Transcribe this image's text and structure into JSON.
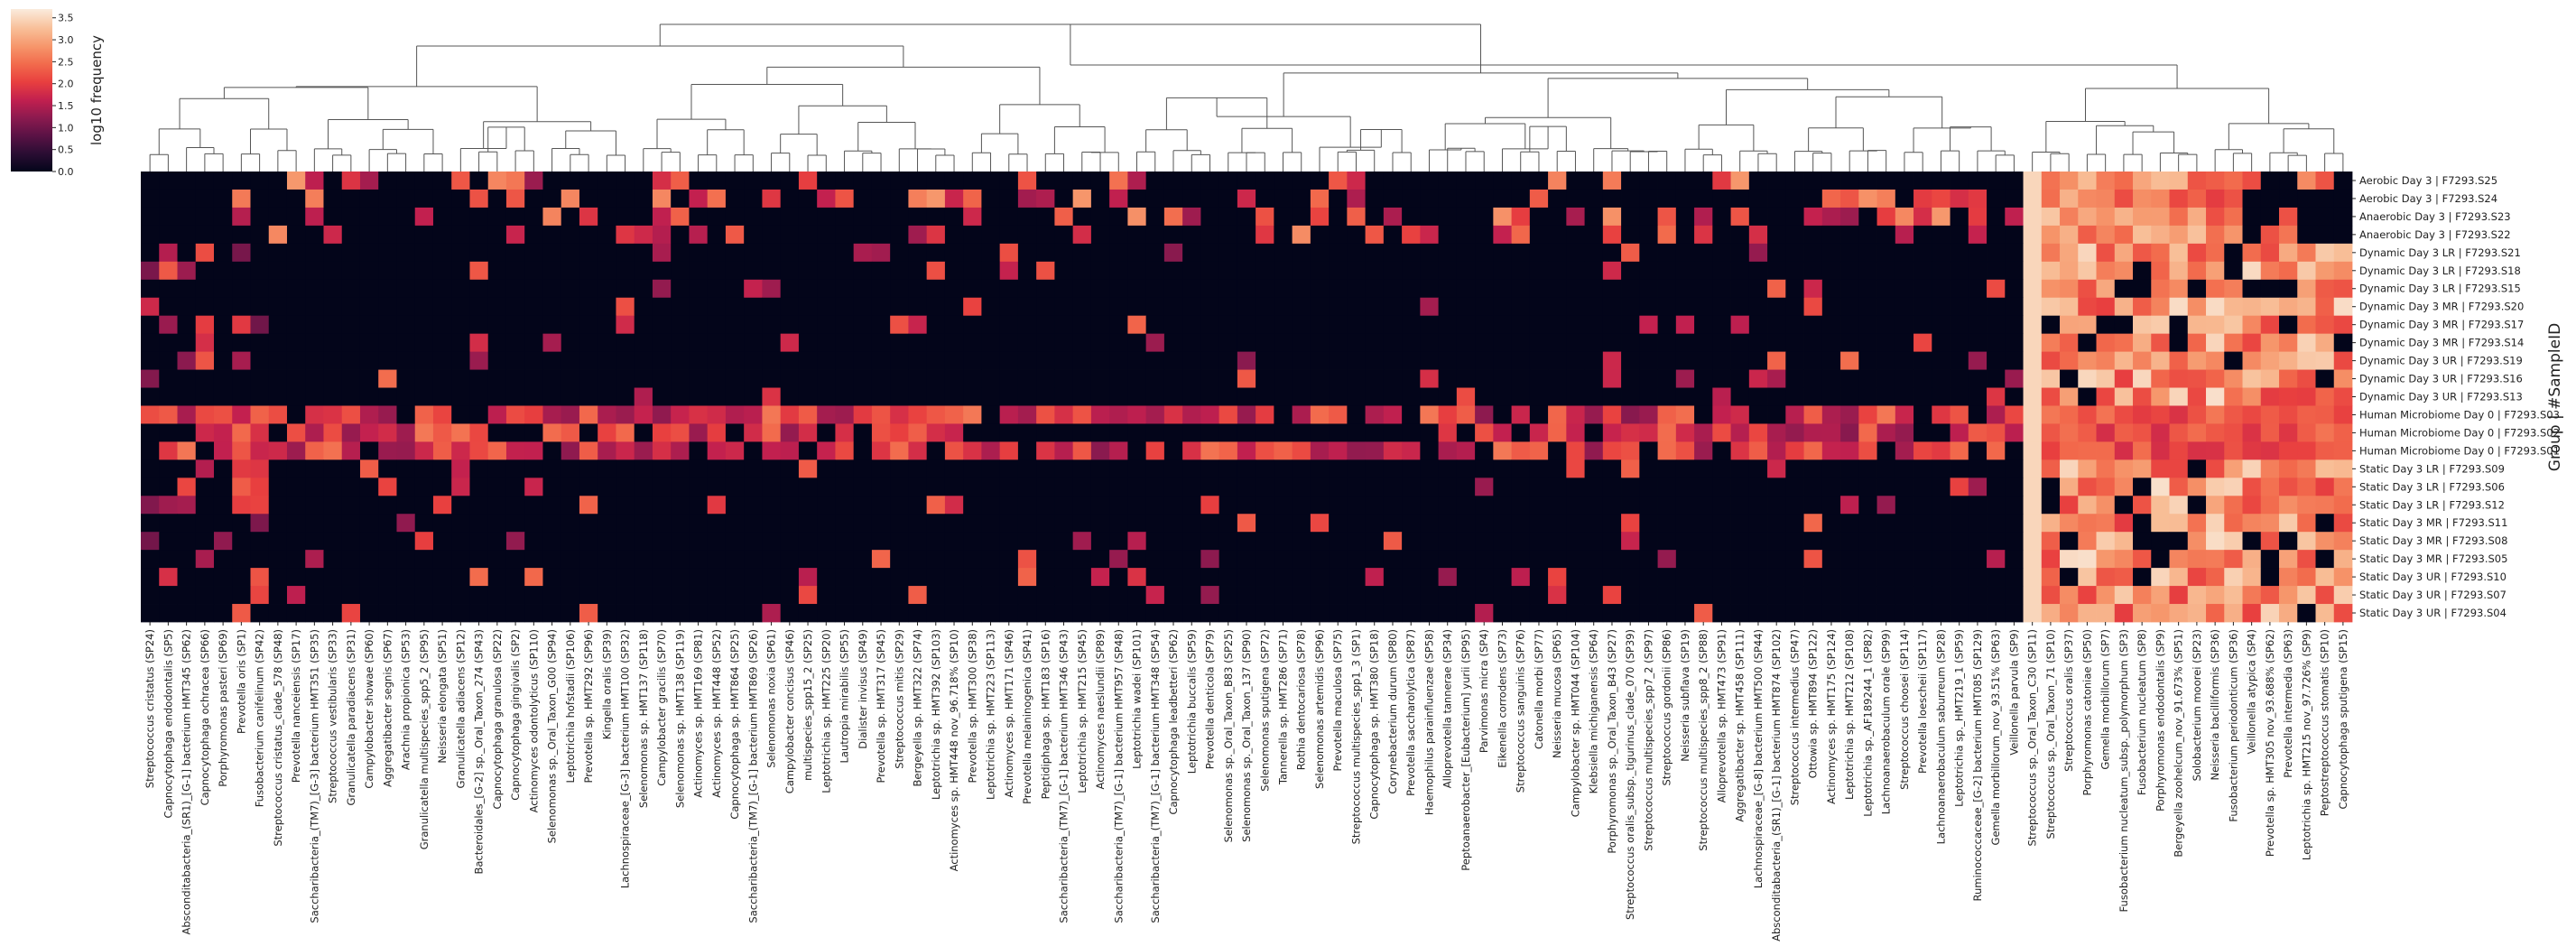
{
  "chart_data": {
    "type": "heatmap",
    "colorbar": {
      "label": "log10 frequency",
      "ticks": [
        "0.0",
        "0.5",
        "1.0",
        "1.5",
        "2.0",
        "2.5",
        "3.0",
        "3.5"
      ],
      "range": [
        0,
        3.7
      ],
      "colormap": [
        "#03051a",
        "#2a0d33",
        "#5a1245",
        "#8c1a4f",
        "#c2204f",
        "#e83f3f",
        "#f26a4c",
        "#f6966b",
        "#f8bf98",
        "#faebdd"
      ]
    },
    "ylabel": "Group | #SampleID",
    "rows": [
      "Aerobic Day 3 | F7293.S25",
      "Aerobic Day 3 | F7293.S24",
      "Anaerobic Day 3 | F7293.S23",
      "Anaerobic Day 3 | F7293.S22",
      "Dynamic Day 3 LR | F7293.S21",
      "Dynamic Day 3 LR | F7293.S18",
      "Dynamic Day 3 LR | F7293.S15",
      "Dynamic Day 3 MR | F7293.S20",
      "Dynamic Day 3 MR | F7293.S17",
      "Dynamic Day 3 MR | F7293.S14",
      "Dynamic Day 3 UR | F7293.S19",
      "Dynamic Day 3 UR | F7293.S16",
      "Dynamic Day 3 UR | F7293.S13",
      "Human Microbiome Day 0 | F7293.S03",
      "Human Microbiome Day 0 | F7293.S02",
      "Human Microbiome Day 0 | F7293.S01",
      "Static Day 3 LR | F7293.S09",
      "Static Day 3 LR | F7293.S06",
      "Static Day 3 LR | F7293.S12",
      "Static Day 3 MR | F7293.S11",
      "Static Day 3 MR | F7293.S08",
      "Static Day 3 MR | F7293.S05",
      "Static Day 3 UR | F7293.S10",
      "Static Day 3 UR | F7293.S07",
      "Static Day 3 UR | F7293.S04"
    ],
    "columns": [
      "Streptococcus cristatus (SP24)",
      "Capnocytophaga endodontalis (SP5)",
      "Absconditabacteria_(SR1)_[G-1] bacterium HMT345 (SP62)",
      "Capnocytophaga ochracea (SP66)",
      "Porphyromonas pasteri (SP69)",
      "Prevotella oris (SP1)",
      "Fusobacterium canifelinum (SP42)",
      "Streptococcus cristatus_clade_578 (SP48)",
      "Prevotella nanceiensis (SP17)",
      "Saccharibacteria_(TM7)_[G-3] bacterium HMT351 (SP35)",
      "Streptococcus vestibularis (SP33)",
      "Granulicatella paradiacens (SP31)",
      "Campylobacter showae (SP60)",
      "Aggregatibacter segnis (SP67)",
      "Arachnia propionica (SP53)",
      "Granulicatella multispecies_spp5_2 (SP95)",
      "Neisseria elongata (SP51)",
      "Granulicatella adiacens (SP12)",
      "Bacteroidales_[G-2] sp._Oral_Taxon_274 (SP43)",
      "Capnocytophaga granulosa (SP22)",
      "Capnocytophaga gingivalis (SP2)",
      "Actinomyces odontolyticus (SP110)",
      "Selenomonas sp._Oral_Taxon_G00 (SP94)",
      "Leptotrichia hofstadii (SP106)",
      "Prevotella sp. HMT292 (SP96)",
      "Kingella oralis (SP39)",
      "Lachnospiraceae_[G-3] bacterium HMT100 (SP32)",
      "Selenomonas sp. HMT137 (SP118)",
      "Campylobacter gracilis (SP70)",
      "Selenomonas sp. HMT138 (SP119)",
      "Actinomyces sp. HMT169 (SP81)",
      "Actinomyces sp. HMT448 (SP52)",
      "Capnocytophaga sp. HMT864 (SP25)",
      "Saccharibacteria_(TM7)_[G-1] bacterium HMT869 (SP26)",
      "Selenomonas noxia (SP61)",
      "Campylobacter concisus (SP46)",
      "multispecies_spp15_2 (SP25)",
      "Leptotrichia sp. HMT225 (SP20)",
      "Lautropia mirabilis (SP55)",
      "Dialister invisus (SP49)",
      "Prevotella sp. HMT317 (SP45)",
      "Streptococcus mitis (SP29)",
      "Bergeyella sp. HMT322 (SP74)",
      "Leptotrichia sp. HMT392 (SP103)",
      "Actinomyces sp. HMT448 nov_96.718% (SP10)",
      "Prevotella sp. HMT300 (SP38)",
      "Leptotrichia sp. HMT223 (SP113)",
      "Actinomyces sp. HMT171 (SP46)",
      "Prevotella melaninogenica (SP41)",
      "Peptidiphaga sp. HMT183 (SP16)",
      "Saccharibacteria_(TM7)_[G-1] bacterium HMT346 (SP43)",
      "Leptotrichia sp. HMT215 (SP45)",
      "Actinomyces naeslundii (SP89)",
      "Saccharibacteria_(TM7)_[G-1] bacterium HMT957 (SP48)",
      "Leptotrichia wadei (SP101)",
      "Saccharibacteria_(TM7)_[G-1] bacterium HMT348 (SP54)",
      "Capnocytophaga leadbetteri (SP62)",
      "Leptotrichia buccalis (SP59)",
      "Prevotella denticola (SP79)",
      "Selenomonas sp._Oral_Taxon_B83 (SP25)",
      "Selenomonas sp._Oral_Taxon_137 (SP90)",
      "Selenomonas sputigena (SP72)",
      "Tannerella sp. HMT286 (SP71)",
      "Rothia dentocariosa (SP78)",
      "Selenomonas artemidis (SP96)",
      "Prevotella maculosa (SP75)",
      "Streptococcus multispecies_spp1_3 (SP1)",
      "Capnocytophaga sp. HMT380 (SP18)",
      "Corynebacterium durum (SP80)",
      "Prevotella saccharolytica (SP87)",
      "Haemophilus parainfluenzae (SP58)",
      "Alloprevotella tannerae (SP34)",
      "Peptoanaerobacter_[Eubacterium] yurii (SP95)",
      "Parvimonas micra (SP4)",
      "Eikenella corrodens (SP73)",
      "Streptococcus sanguinis (SP76)",
      "Catonella morbi (SP77)",
      "Neisseria mucosa (SP65)",
      "Campylobacter sp. HMT044 (SP104)",
      "Klebsiella michiganensis (SP64)",
      "Porphyromonas sp._Oral_Taxon_B43 (SP27)",
      "Streptococcus oralis_subsp._tigurinus_clade_070 (SP39)",
      "Streptococcus multispecies_spp7_2 (SP97)",
      "Streptococcus gordonii (SP86)",
      "Neisseria subflava (SP19)",
      "Streptococcus multispecies_spp8_2 (SP88)",
      "Alloprevotella sp. HMT473 (SP91)",
      "Aggregatibacter sp. HMT458 (SP111)",
      "Lachnospiraceae_[G-8] bacterium HMT500 (SP44)",
      "Absconditabacteria_(SR1)_[G-1] bacterium HMT874 (SP102)",
      "Streptococcus intermedius (SP47)",
      "Ottowia sp. HMT894 (SP122)",
      "Actinomyces sp. HMT175 (SP124)",
      "Leptotrichia sp. HMT212 (SP108)",
      "Leptotrichia sp._AF189244_1 (SP82)",
      "Lachnoanaerobaculum orale (SP99)",
      "Streptococcus choosei (SP114)",
      "Prevotella loescheii (SP117)",
      "Lachnoanaerobaculum saburreum (SP28)",
      "Leptotrichia sp._HMT219_1 (SP59)",
      "Ruminococcaceae_[G-2] bacterium HMT085 (SP129)",
      "Gemella morbillorum_nov_93.51% (SP63)",
      "Veillonella parvula (SP9)",
      "Streptococcus sp._Oral_Taxon_C30 (SP11)",
      "Streptococcus sp._Oral_Taxon_71 (SP10)",
      "Streptococcus oralis (SP37)",
      "Porphyromonas catoniae (SP50)",
      "Gemella morbillorum (SP7)",
      "Fusobacterium nucleatum_subsp._polymorphum (SP3)",
      "Fusobacterium nucleatum (SP8)",
      "Porphyromonas endodontalis (SP9)",
      "Bergeyella zoohelcum_nov_91.673% (SP51)",
      "Solobacterium moorei (SP23)",
      "Neisseria bacilliformis (SP36)",
      "Fusobacterium periodonticum (SP36)",
      "Veillonella atypica (SP4)",
      "Prevotella sp. HMT305 nov_93.688% (SP62)",
      "Prevotella intermedia (SP63)",
      "Leptotrichia sp. HMT215 nov_97.726% (SP9)",
      "Peptostreptococcus stomatis (SP10)",
      "Capnocytophaga sputigena (SP15)"
    ],
    "grid": false,
    "legend": "top-left"
  }
}
